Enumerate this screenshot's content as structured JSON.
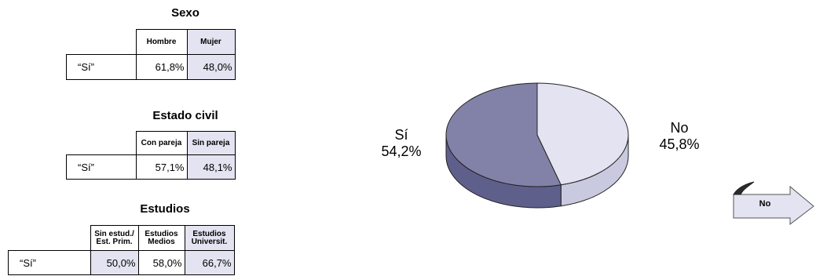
{
  "tables": [
    {
      "title": "Sexo",
      "columns": [
        "Hombre",
        "Mujer"
      ],
      "row_label": "“Sí”",
      "values": [
        "61,8%",
        "48,0%"
      ]
    },
    {
      "title": "Estado civil",
      "columns": [
        "Con pareja",
        "Sin pareja"
      ],
      "row_label": "“Sí”",
      "values": [
        "57,1%",
        "48,1%"
      ]
    },
    {
      "title": "Estudios",
      "columns": [
        "Sin estud./ Est. Prim.",
        "Estudios Medios",
        "Estudios Universit."
      ],
      "row_label": "“Sí”",
      "values": [
        "50,0%",
        "58,0%",
        "66,7%"
      ]
    }
  ],
  "chart_data": [
    {
      "type": "table",
      "title": "Sexo",
      "categories": [
        "Hombre",
        "Mujer"
      ],
      "row_label": "“Sí”",
      "values": [
        61.8,
        48.0
      ]
    },
    {
      "type": "table",
      "title": "Estado civil",
      "categories": [
        "Con pareja",
        "Sin pareja"
      ],
      "row_label": "“Sí”",
      "values": [
        57.1,
        48.1
      ]
    },
    {
      "type": "table",
      "title": "Estudios",
      "categories": [
        "Sin estud./ Est. Prim.",
        "Estudios Medios",
        "Estudios Universit."
      ],
      "row_label": "“Sí”",
      "values": [
        50.0,
        58.0,
        66.7
      ]
    },
    {
      "type": "pie",
      "categories": [
        "Sí",
        "No"
      ],
      "values": [
        54.2,
        45.8
      ],
      "value_labels": [
        "54,2%",
        "45,8%"
      ],
      "colors": [
        "#8282a8",
        "#e3e3f1"
      ],
      "side_colors": [
        "#5f5f8c",
        "#c9c9df"
      ]
    }
  ],
  "pie_labels": {
    "yes_name": "Sí",
    "yes_value": "54,2%",
    "no_name": "No",
    "no_value": "45,8%"
  },
  "arrow": {
    "label": "No",
    "fill": "#e3e3f1"
  }
}
